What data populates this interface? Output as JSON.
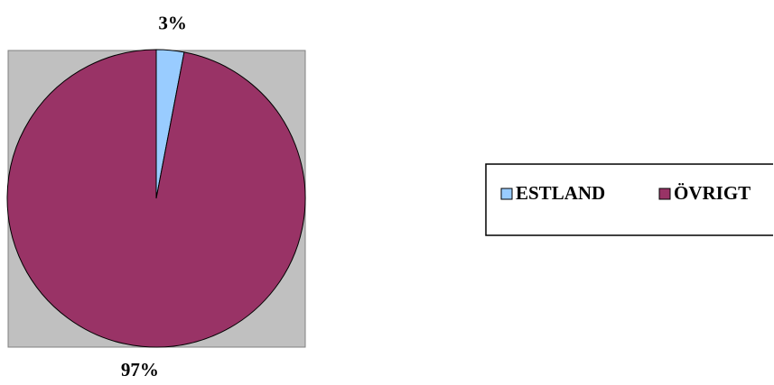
{
  "chart_data": {
    "type": "pie",
    "categories": [
      "ESTLAND",
      "ÖVRIGT"
    ],
    "values": [
      3,
      97
    ],
    "value_labels": [
      "3%",
      "97%"
    ],
    "colors": [
      "#99ccff",
      "#993366"
    ]
  }
}
